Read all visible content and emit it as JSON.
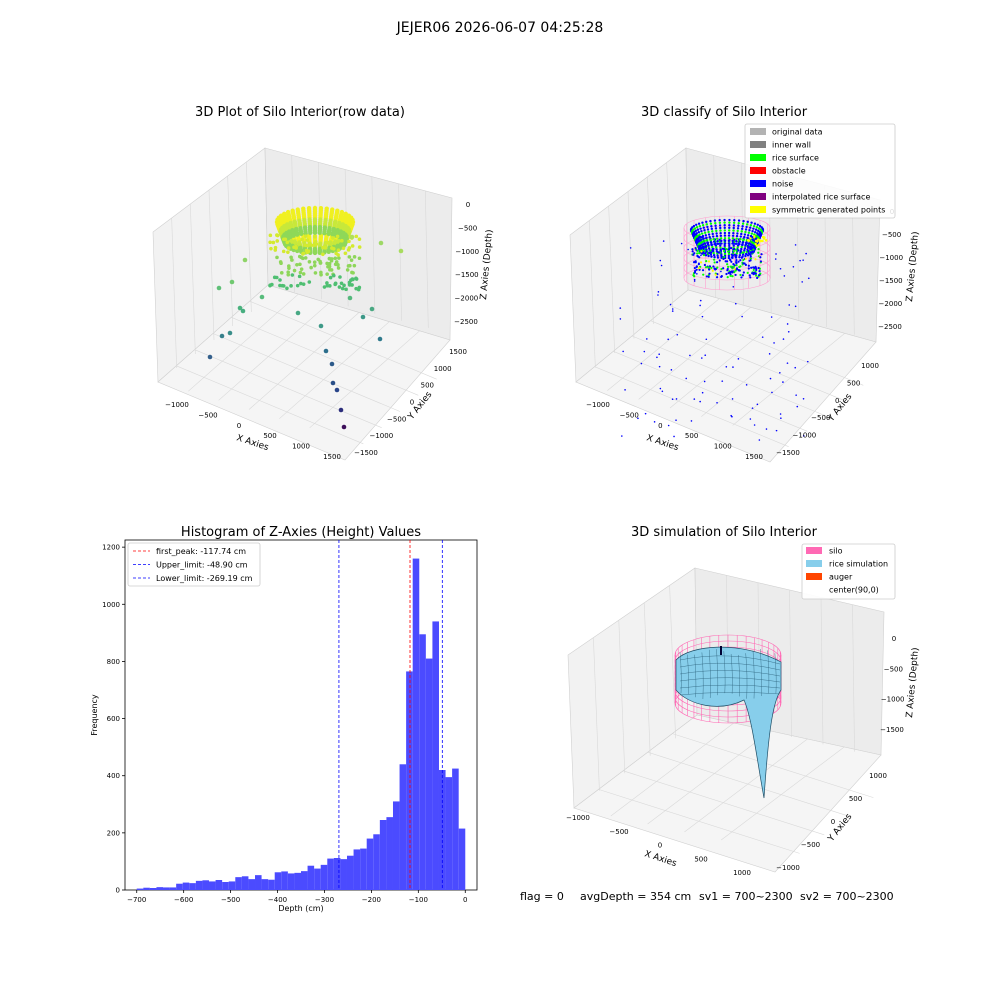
{
  "suptitle": "JEJER06 2026-06-07 04:25:28",
  "status_line": {
    "flag": "flag = 0",
    "avg_depth": "avgDepth = 354 cm",
    "sv1": "sv1 = 700~2300",
    "sv2": "sv2 = 700~2300"
  },
  "colors": {
    "grey_light": "#b3b3b3",
    "grey": "#808080",
    "green": "#00ff00",
    "red": "#ff0000",
    "blue": "#0000ff",
    "purple": "#800080",
    "yellow": "#ffff00",
    "hist_bar": "#4b4bff",
    "peak_line": "#ff0000",
    "limit_line": "#0000ff",
    "silo": "#ff69b4",
    "rice": "#87ceeb",
    "auger": "#ff4500"
  },
  "chart_data": [
    {
      "id": "raw",
      "type": "scatter",
      "title": "3D Plot of Silo Interior(row data)",
      "xlabel": "X Axies",
      "ylabel": "Y Axies",
      "zlabel": "Z Axies (Depth)",
      "x_ticks": [
        "−1000",
        "−500",
        "0",
        "500",
        "1000",
        "1500"
      ],
      "y_ticks": [
        "−1500",
        "−1000",
        "−500",
        "0",
        "500",
        "1000",
        "1500"
      ],
      "z_ticks": [
        "0",
        "−500",
        "−1000",
        "−1500",
        "−2000",
        "−2500"
      ]
    },
    {
      "id": "classify",
      "type": "scatter",
      "title": "3D classify of Silo Interior",
      "xlabel": "X Axies",
      "ylabel": "Y Axies",
      "zlabel": "Z Axies (Depth)",
      "x_ticks": [
        "−1000",
        "−500",
        "0",
        "500",
        "1000",
        "1500"
      ],
      "y_ticks": [
        "−1500",
        "−1000",
        "−500",
        "0",
        "500",
        "1000"
      ],
      "z_ticks": [
        "0",
        "−500",
        "−1000",
        "−1500",
        "−2000",
        "−2500"
      ],
      "legend": [
        {
          "label": "original data",
          "color": "#b3b3b3"
        },
        {
          "label": "inner wall",
          "color": "#808080"
        },
        {
          "label": "rice surface",
          "color": "#00ff00"
        },
        {
          "label": "obstacle",
          "color": "#ff0000"
        },
        {
          "label": "noise",
          "color": "#0000ff"
        },
        {
          "label": "interpolated rice surface",
          "color": "#800080"
        },
        {
          "label": "symmetric generated points",
          "color": "#ffff00"
        }
      ]
    },
    {
      "id": "hist",
      "type": "bar",
      "title": "Histogram of Z-Axies (Height) Values",
      "xlabel": "Depth (cm)",
      "ylabel": "Frequency",
      "xlim": [
        -725,
        25
      ],
      "ylim": [
        0,
        1225
      ],
      "x_ticks": [
        -700,
        -600,
        -500,
        -400,
        -300,
        -200,
        -100,
        0
      ],
      "y_ticks": [
        0,
        200,
        400,
        600,
        800,
        1000,
        1200
      ],
      "bin_start": -700,
      "bin_width": 14,
      "values": [
        5,
        8,
        7,
        10,
        9,
        9,
        22,
        26,
        24,
        32,
        34,
        30,
        35,
        28,
        30,
        45,
        48,
        38,
        52,
        38,
        36,
        62,
        65,
        58,
        60,
        66,
        85,
        75,
        88,
        110,
        112,
        108,
        120,
        142,
        145,
        180,
        195,
        245,
        255,
        310,
        440,
        765,
        1160,
        895,
        810,
        940,
        420,
        395,
        425,
        215
      ],
      "lines": [
        {
          "label": "first_peak: -117.74 cm",
          "x": -117.74,
          "kind": "peak"
        },
        {
          "label": "Upper_limit: -48.90 cm",
          "x": -48.9,
          "kind": "limit"
        },
        {
          "label": "Lower_limit: -269.19 cm",
          "x": -269.19,
          "kind": "limit"
        }
      ]
    },
    {
      "id": "sim",
      "type": "area",
      "title": "3D simulation of Silo Interior",
      "xlabel": "X Axies",
      "ylabel": "Y Axies",
      "zlabel": "Z Axies (Depth)",
      "x_ticks": [
        "−1000",
        "−500",
        "0",
        "500",
        "1000"
      ],
      "y_ticks": [
        "−1000",
        "−500",
        "0",
        "500",
        "1000"
      ],
      "z_ticks": [
        "0",
        "−500",
        "−1000",
        "−1500"
      ],
      "legend": [
        {
          "label": "silo",
          "color": "#ff69b4"
        },
        {
          "label": "rice simulation",
          "color": "#87ceeb"
        },
        {
          "label": "auger",
          "color": "#ff4500"
        },
        {
          "label": "center(90,0)",
          "color": ""
        }
      ]
    }
  ]
}
